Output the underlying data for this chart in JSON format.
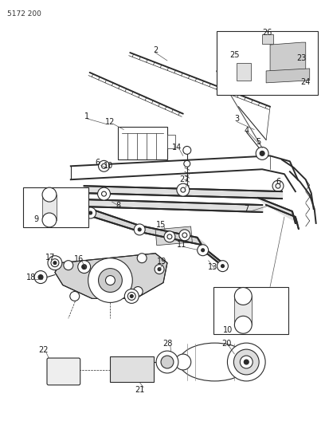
{
  "page_id": "5172 200",
  "bg_color": "#ffffff",
  "line_color": "#2a2a2a",
  "label_color": "#1a1a1a",
  "fig_width": 4.08,
  "fig_height": 5.33,
  "dpi": 100
}
